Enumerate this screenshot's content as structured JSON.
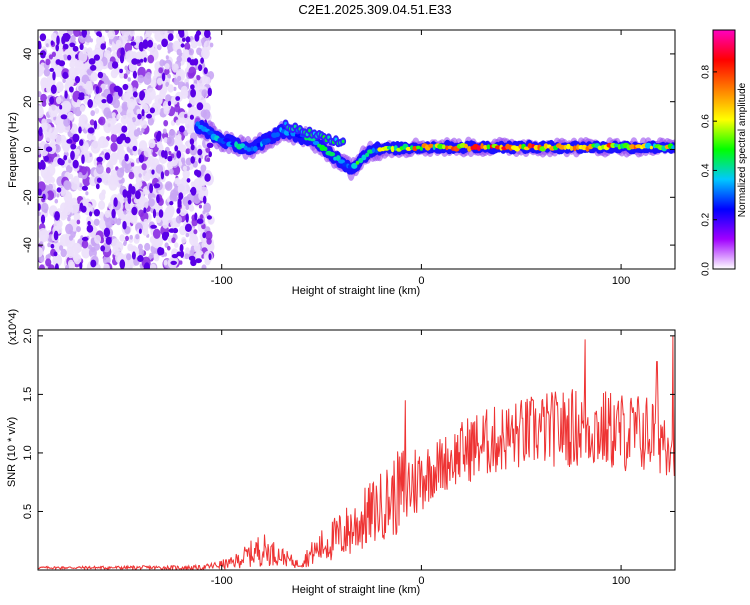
{
  "title": "C2E1.2025.309.04.51.E33",
  "chart_data": [
    {
      "type": "heatmap",
      "title": "C2E1.2025.309.04.51.E33",
      "xlabel": "Height of straight line (km)",
      "ylabel": "Frequency (Hz)",
      "xlim": [
        -192,
        127
      ],
      "ylim": [
        -50,
        50
      ],
      "x_ticks": [
        -100,
        0,
        100
      ],
      "x_tick_labels": [
        "-100",
        "0",
        "100"
      ],
      "y_ticks": [
        -40,
        -20,
        0,
        20,
        40
      ],
      "y_tick_labels": [
        "-40",
        "-20",
        "0",
        "20",
        "40"
      ],
      "colorbar": {
        "label": "Normalized spectral amplitude",
        "range": [
          0,
          0.97
        ],
        "ticks": [
          0.0,
          0.2,
          0.4,
          0.6,
          0.8
        ],
        "tick_labels": [
          "0.0",
          "0.2",
          "0.4",
          "0.6",
          "0.8"
        ],
        "colors": [
          "#ffffff",
          "#a000ff",
          "#0000ff",
          "#00c8ff",
          "#00ff00",
          "#ffff00",
          "#ff8000",
          "#ff0000",
          "#ff00c0"
        ]
      },
      "regions": [
        {
          "name": "noise",
          "x_range": [
            -192,
            -105
          ],
          "freq_range": [
            -50,
            50
          ],
          "amplitude": 0.05
        },
        {
          "name": "ridge",
          "points": [
            {
              "x": -112,
              "freq": 10,
              "amplitude": 0.3
            },
            {
              "x": -100,
              "freq": 4,
              "amplitude": 0.35
            },
            {
              "x": -85,
              "freq": 0,
              "amplitude": 0.4
            },
            {
              "x": -70,
              "freq": 8,
              "amplitude": 0.35
            },
            {
              "x": -55,
              "freq": 4,
              "amplitude": 0.4
            },
            {
              "x": -35,
              "freq": -8,
              "amplitude": 0.45
            },
            {
              "x": -25,
              "freq": 0,
              "amplitude": 0.5
            },
            {
              "x": 0,
              "freq": 1,
              "amplitude": 0.75
            },
            {
              "x": 50,
              "freq": 1,
              "amplitude": 0.8
            },
            {
              "x": 100,
              "freq": 1,
              "amplitude": 0.7
            },
            {
              "x": 127,
              "freq": 1,
              "amplitude": 0.6
            }
          ]
        }
      ]
    },
    {
      "type": "line",
      "xlabel": "Height of straight line (km)",
      "ylabel": "SNR (10 * v/v)",
      "y_scale_label": "(x10^4)",
      "color": "#ee3333",
      "xlim": [
        -192,
        127
      ],
      "ylim": [
        0,
        2.05
      ],
      "x_ticks": [
        -100,
        0,
        100
      ],
      "x_tick_labels": [
        "-100",
        "0",
        "100"
      ],
      "y_ticks": [
        0.5,
        1.0,
        1.5,
        2.0
      ],
      "y_tick_labels": [
        "0.5",
        "1.0",
        "1.5",
        "2.0"
      ],
      "envelope": [
        {
          "x": -192,
          "mean": 0.02,
          "spread": 0.01
        },
        {
          "x": -110,
          "mean": 0.02,
          "spread": 0.02
        },
        {
          "x": -95,
          "mean": 0.06,
          "spread": 0.05
        },
        {
          "x": -80,
          "mean": 0.18,
          "spread": 0.15
        },
        {
          "x": -70,
          "mean": 0.12,
          "spread": 0.08
        },
        {
          "x": -62,
          "mean": 0.05,
          "spread": 0.04
        },
        {
          "x": -50,
          "mean": 0.2,
          "spread": 0.15
        },
        {
          "x": -35,
          "mean": 0.35,
          "spread": 0.25
        },
        {
          "x": -20,
          "mean": 0.55,
          "spread": 0.3
        },
        {
          "x": -8,
          "mean": 0.7,
          "spread": 0.4
        },
        {
          "x": 5,
          "mean": 0.85,
          "spread": 0.25
        },
        {
          "x": 15,
          "mean": 0.95,
          "spread": 0.25
        },
        {
          "x": 25,
          "mean": 1.05,
          "spread": 0.3
        },
        {
          "x": 40,
          "mean": 1.12,
          "spread": 0.3
        },
        {
          "x": 60,
          "mean": 1.2,
          "spread": 0.32
        },
        {
          "x": 80,
          "mean": 1.22,
          "spread": 0.35
        },
        {
          "x": 100,
          "mean": 1.18,
          "spread": 0.35
        },
        {
          "x": 127,
          "mean": 1.15,
          "spread": 0.35
        }
      ],
      "peaks": [
        {
          "x": -8,
          "value": 1.45
        },
        {
          "x": 82,
          "value": 1.97
        },
        {
          "x": 118,
          "value": 1.78
        },
        {
          "x": 126,
          "value": 2.0
        }
      ]
    }
  ]
}
